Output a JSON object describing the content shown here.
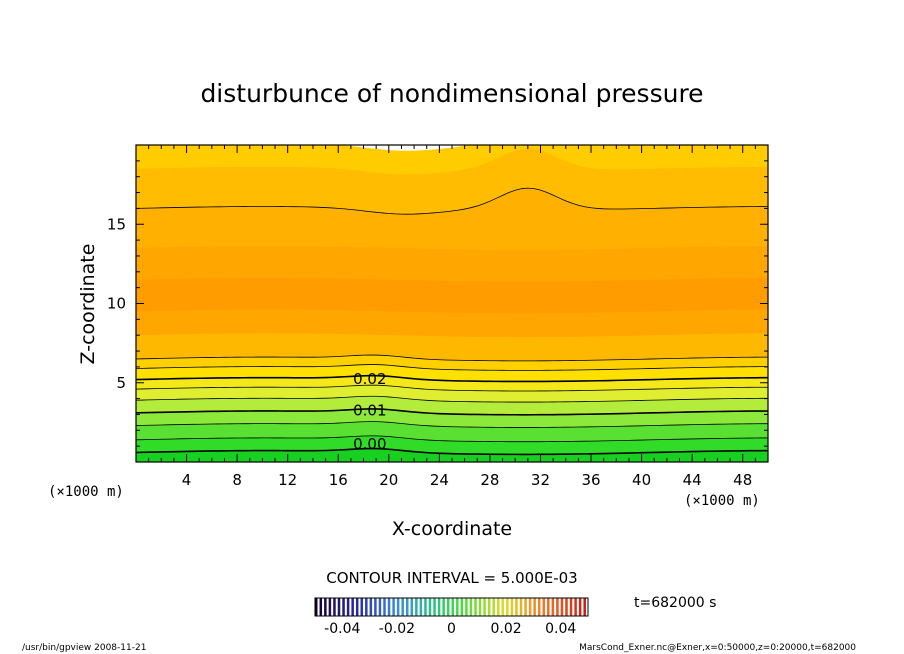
{
  "chart_data": {
    "type": "contour",
    "title": "disturbunce of nondimensional pressure",
    "xlabel": "X-coordinate",
    "ylabel": "Z-coordinate",
    "x_unit": "(×1000 m)",
    "z_unit": "(×1000 m)",
    "xlim": [
      0,
      50
    ],
    "ylim": [
      0,
      20
    ],
    "x_ticks": [
      "4",
      "8",
      "12",
      "16",
      "20",
      "24",
      "28",
      "32",
      "36",
      "40",
      "44",
      "48"
    ],
    "y_ticks": [
      "5",
      "10",
      "15"
    ],
    "contour_interval_text": "CONTOUR INTERVAL = 5.000E-03",
    "contour_labels": [
      {
        "text": "0.02",
        "x": 18.5,
        "z": 5.0
      },
      {
        "text": "0.01",
        "x": 18.5,
        "z": 3.0
      },
      {
        "text": "0.00",
        "x": 18.5,
        "z": 0.9
      }
    ],
    "colorbar": {
      "min": -0.05,
      "max": 0.05,
      "tick_labels": [
        "-0.04",
        "-0.02",
        "0",
        "0.02",
        "0.04"
      ],
      "tick_values": [
        -0.04,
        -0.02,
        0,
        0.02,
        0.04
      ]
    },
    "time_text": "t=682000 s",
    "footer_left": "/usr/bin/gpview   2008-11-21",
    "footer_right": "MarsCond_Exner.nc@Exner,x=0:50000,z=0:20000,t=682000",
    "bands": [
      {
        "z_top": 0.6,
        "value": 0.0,
        "color": "#18d020"
      },
      {
        "z_top": 1.4,
        "value": 0.004,
        "color": "#30dc28"
      },
      {
        "z_top": 2.3,
        "value": 0.008,
        "color": "#5ae032"
      },
      {
        "z_top": 3.1,
        "value": 0.011,
        "color": "#8ce83a"
      },
      {
        "z_top": 3.9,
        "value": 0.015,
        "color": "#b4ec3c"
      },
      {
        "z_top": 4.6,
        "value": 0.018,
        "color": "#e0ee32"
      },
      {
        "z_top": 5.2,
        "value": 0.021,
        "color": "#f4e818"
      },
      {
        "z_top": 5.9,
        "value": 0.024,
        "color": "#ffe000"
      },
      {
        "z_top": 6.5,
        "value": 0.028,
        "color": "#ffd000"
      },
      {
        "z_top": 8.0,
        "value": 0.031,
        "color": "#ffb800"
      },
      {
        "z_top": 9.5,
        "value": 0.034,
        "color": "#ffa600"
      },
      {
        "z_top": 11.5,
        "value": 0.037,
        "color": "#ff9c00"
      },
      {
        "z_top": 13.5,
        "value": 0.034,
        "color": "#ffa600"
      },
      {
        "z_top": 16.0,
        "value": 0.031,
        "color": "#ffb000"
      },
      {
        "z_top": 18.5,
        "value": 0.028,
        "color": "#ffbc00"
      },
      {
        "z_top": 20.0,
        "value": 0.025,
        "color": "#ffcc00"
      }
    ],
    "contour_lines_z": [
      0.6,
      1.4,
      2.3,
      3.1,
      3.9,
      4.6,
      5.2,
      5.9,
      6.5,
      16.0
    ]
  }
}
